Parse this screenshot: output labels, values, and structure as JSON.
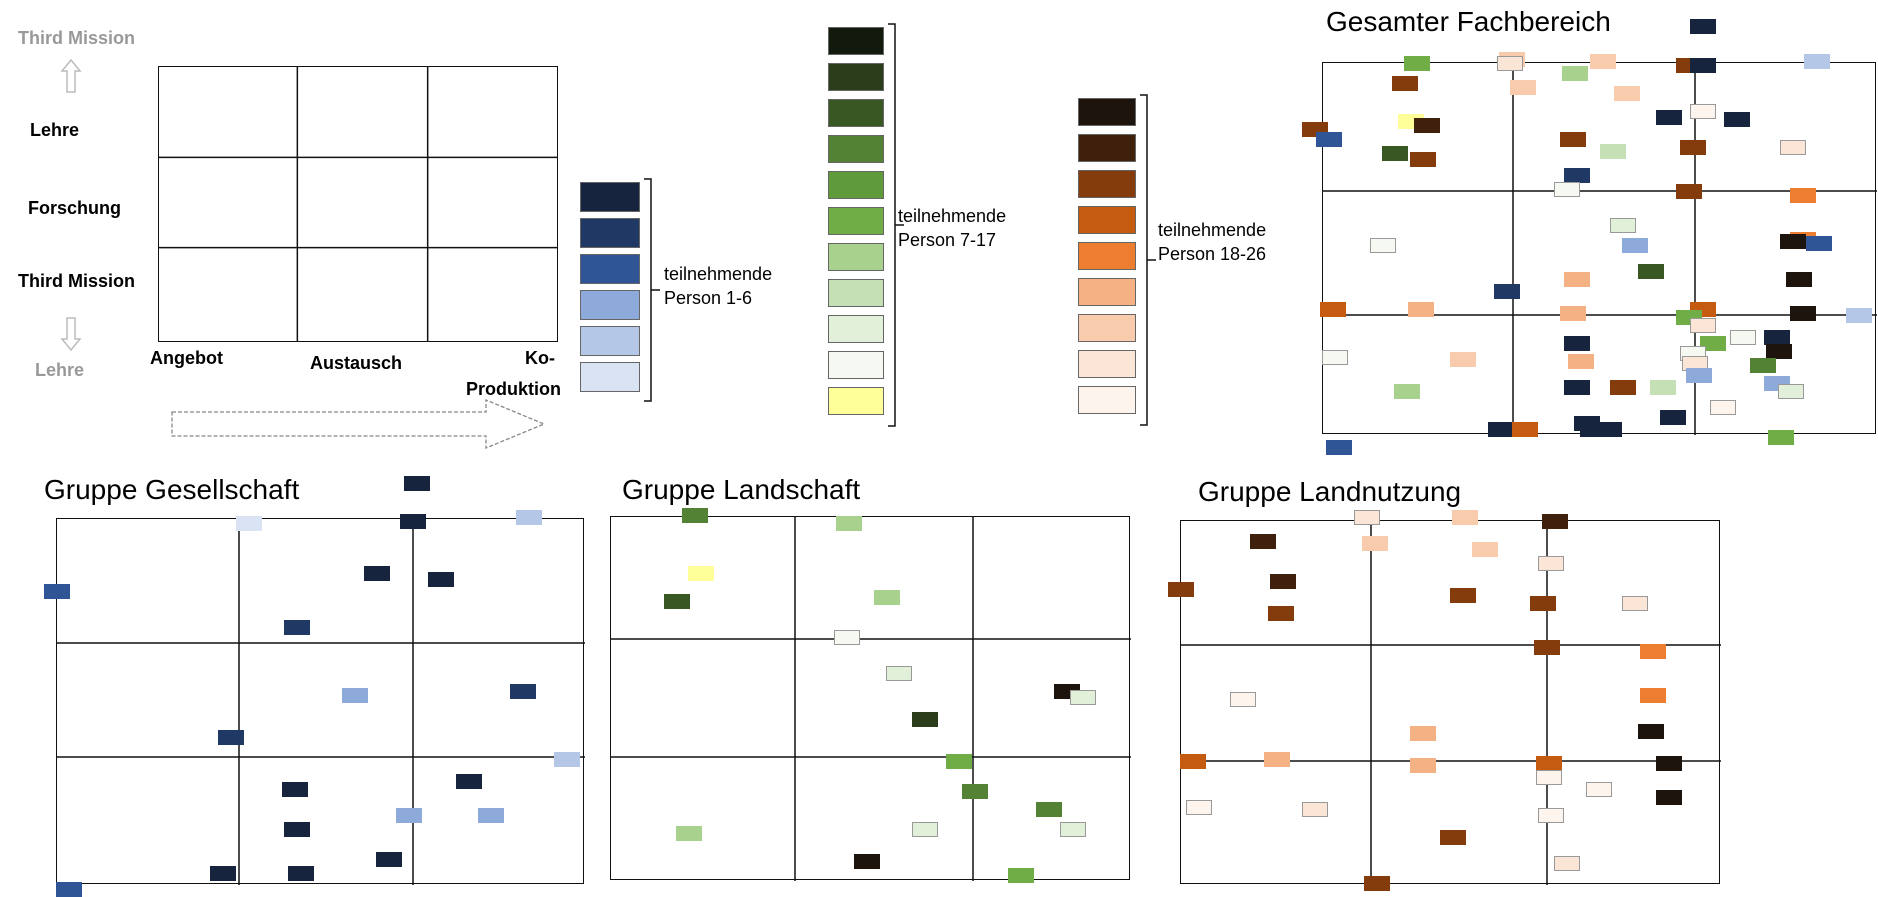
{
  "axes": {
    "top_label": "Third Mission",
    "bottom_label": "Lehre",
    "rows": [
      "Lehre",
      "Forschung",
      "Third Mission"
    ],
    "columns": [
      "Angebot",
      "Austausch",
      "Ko-",
      "Produktion"
    ]
  },
  "legend": [
    {
      "label_line1": "teilnehmende",
      "label_line2": "Person 1-6",
      "colors": [
        "#16253d",
        "#203864",
        "#2f5597",
        "#8eaadb",
        "#b4c7e7",
        "#dae3f3"
      ]
    },
    {
      "label_line1": "teilnehmende",
      "label_line2": "Person 7-17",
      "colors": [
        "#111a0d",
        "#2b3d1a",
        "#385723",
        "#548235",
        "#5f9b3a",
        "#70ad47",
        "#a9d18e",
        "#c5e0b4",
        "#e2f0d9",
        "#f5f9f1",
        "#ffff99"
      ]
    },
    {
      "label_line1": "teilnehmende",
      "label_line2": "Person 18-26",
      "colors": [
        "#1e140e",
        "#3f200c",
        "#843c0c",
        "#c55a11",
        "#ed7d31",
        "#f4b183",
        "#f8cbad",
        "#fbe5d6",
        "#fdf4ee"
      ]
    }
  ],
  "panels": {
    "gesamt": {
      "title": "Gesamter Fachbereich"
    },
    "gesellschaft": {
      "title": "Gruppe Gesellschaft"
    },
    "landschaft": {
      "title": "Gruppe Landschaft"
    },
    "landnutzung": {
      "title": "Gruppe Landnutzung"
    }
  },
  "colors": {
    "b1": "#16253d",
    "b2": "#203864",
    "b3": "#2f5597",
    "b4": "#8eaadb",
    "b5": "#b4c7e7",
    "b6": "#dae3f3",
    "g0": "#111a0d",
    "g1": "#2b3d1a",
    "g2": "#385723",
    "g3": "#548235",
    "g4": "#70ad47",
    "g5": "#a9d18e",
    "g6": "#c5e0b4",
    "g7": "#e2f0d9",
    "g8": "#f5f9f1",
    "gy": "#ffff99",
    "o1": "#1e140e",
    "o2": "#3f200c",
    "o3": "#843c0c",
    "o4": "#c55a11",
    "o5": "#ed7d31",
    "o6": "#f4b183",
    "o7": "#f8cbad",
    "o8": "#fbe5d6",
    "o9": "#fdf4ee"
  }
}
